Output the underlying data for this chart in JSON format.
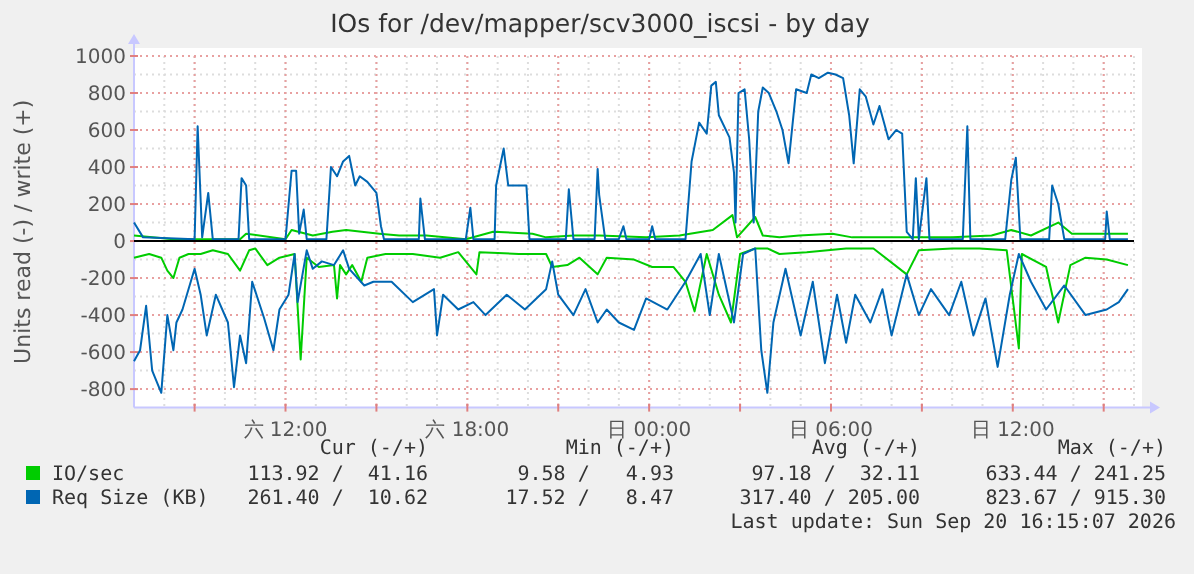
{
  "chart_data": {
    "type": "line",
    "title": "IOs for /dev/mapper/scv3000_iscsi - by day",
    "ylabel": "Units read (-) / write (+)",
    "xlim": [
      "2026-09-19T07:00",
      "2026-09-20T16:00"
    ],
    "ylim": [
      -900,
      1000
    ],
    "xticks": [
      {
        "value": "2026-09-19T09:00",
        "label": null
      },
      {
        "value": "2026-09-19T12:00",
        "label": "六 12:00"
      },
      {
        "value": "2026-09-19T15:00",
        "label": null
      },
      {
        "value": "2026-09-19T18:00",
        "label": "六 18:00"
      },
      {
        "value": "2026-09-19T21:00",
        "label": null
      },
      {
        "value": "2026-09-20T00:00",
        "label": "日 00:00"
      },
      {
        "value": "2026-09-20T03:00",
        "label": null
      },
      {
        "value": "2026-09-20T06:00",
        "label": "日 06:00"
      },
      {
        "value": "2026-09-20T09:00",
        "label": null
      },
      {
        "value": "2026-09-20T12:00",
        "label": "日 12:00"
      },
      {
        "value": "2026-09-20T15:00",
        "label": null
      }
    ],
    "yticks": [
      -800,
      -600,
      -400,
      -200,
      0,
      200,
      400,
      600,
      800,
      1000
    ],
    "grid": true,
    "legend": "bottom",
    "series": [
      {
        "name": "IO/sec",
        "color": "#00cc00",
        "x": [
          "2026-09-19T07:00",
          "2026-09-19T08:18",
          "2026-09-19T10:30",
          "2026-09-19T10:42",
          "2026-09-19T12:00",
          "2026-09-19T12:12",
          "2026-09-19T12:54",
          "2026-09-19T13:33",
          "2026-09-19T14:00",
          "2026-09-19T15:06",
          "2026-09-19T15:45",
          "2026-09-19T16:39",
          "2026-09-19T17:57",
          "2026-09-19T18:51",
          "2026-09-19T20:09",
          "2026-09-19T20:36",
          "2026-09-19T21:30",
          "2026-09-19T22:21",
          "2026-09-19T23:54",
          "2026-09-20T01:00",
          "2026-09-20T02:06",
          "2026-09-20T02:45",
          "2026-09-20T02:54",
          "2026-09-20T03:30",
          "2026-09-20T03:45",
          "2026-09-20T04:18",
          "2026-09-20T04:57",
          "2026-09-20T06:03",
          "2026-09-20T06:42",
          "2026-09-20T08:15",
          "2026-09-20T10:00",
          "2026-09-20T11:18",
          "2026-09-20T11:57",
          "2026-09-20T12:36",
          "2026-09-20T13:30",
          "2026-09-20T13:57",
          "2026-09-20T14:24",
          "2026-09-20T15:18",
          "2026-09-20T15:48"
        ],
        "values": [
          30,
          10,
          10,
          40,
          10,
          60,
          30,
          50,
          60,
          40,
          30,
          30,
          10,
          50,
          40,
          20,
          30,
          30,
          20,
          30,
          60,
          140,
          20,
          130,
          30,
          20,
          30,
          40,
          20,
          20,
          20,
          30,
          60,
          30,
          100,
          40,
          40,
          40,
          40
        ]
      },
      {
        "color": "#00cc00",
        "x": [
          "2026-09-19T07:00",
          "2026-09-19T07:30",
          "2026-09-19T07:54",
          "2026-09-19T08:06",
          "2026-09-19T08:18",
          "2026-09-19T08:30",
          "2026-09-19T08:48",
          "2026-09-19T09:12",
          "2026-09-19T09:36",
          "2026-09-19T10:06",
          "2026-09-19T10:30",
          "2026-09-19T10:48",
          "2026-09-19T11:00",
          "2026-09-19T11:24",
          "2026-09-19T11:48",
          "2026-09-19T12:18",
          "2026-09-19T12:30",
          "2026-09-19T12:42",
          "2026-09-19T13:06",
          "2026-09-19T13:36",
          "2026-09-19T13:42",
          "2026-09-19T13:48",
          "2026-09-19T14:00",
          "2026-09-19T14:12",
          "2026-09-19T14:30",
          "2026-09-19T14:42",
          "2026-09-19T15:18",
          "2026-09-19T16:12",
          "2026-09-19T17:06",
          "2026-09-19T17:42",
          "2026-09-19T18:18",
          "2026-09-19T18:24",
          "2026-09-19T19:42",
          "2026-09-19T20:36",
          "2026-09-19T20:48",
          "2026-09-19T21:18",
          "2026-09-19T21:42",
          "2026-09-19T22:18",
          "2026-09-19T22:36",
          "2026-09-19T23:30",
          "2026-09-20T00:06",
          "2026-09-20T00:48",
          "2026-09-20T01:12",
          "2026-09-20T01:30",
          "2026-09-20T01:54",
          "2026-09-20T02:18",
          "2026-09-20T02:42",
          "2026-09-20T03:00",
          "2026-09-20T03:30",
          "2026-09-20T03:54",
          "2026-09-20T04:18",
          "2026-09-20T05:12",
          "2026-09-20T06:30",
          "2026-09-20T07:24",
          "2026-09-20T08:30",
          "2026-09-20T08:54",
          "2026-09-20T10:00",
          "2026-09-20T10:54",
          "2026-09-20T11:48",
          "2026-09-20T12:12",
          "2026-09-20T12:18",
          "2026-09-20T13:06",
          "2026-09-20T13:30",
          "2026-09-20T13:54",
          "2026-09-20T14:24",
          "2026-09-20T15:06",
          "2026-09-20T15:48"
        ],
        "values": [
          -90,
          -70,
          -90,
          -160,
          -200,
          -90,
          -70,
          -70,
          -50,
          -70,
          -160,
          -50,
          -40,
          -130,
          -90,
          -70,
          -640,
          -90,
          -140,
          -130,
          -310,
          -130,
          -180,
          -130,
          -220,
          -90,
          -70,
          -70,
          -90,
          -60,
          -180,
          -60,
          -70,
          -70,
          -140,
          -130,
          -90,
          -180,
          -90,
          -100,
          -140,
          -140,
          -220,
          -380,
          -70,
          -290,
          -440,
          -70,
          -40,
          -40,
          -70,
          -60,
          -40,
          -40,
          -180,
          -50,
          -40,
          -40,
          -50,
          -580,
          -70,
          -140,
          -440,
          -130,
          -90,
          -100,
          -130
        ]
      },
      {
        "name": "Req Size (KB)",
        "color": "#0066b3",
        "x": [
          "2026-09-19T07:00",
          "2026-09-19T07:18",
          "2026-09-19T09:00",
          "2026-09-19T09:06",
          "2026-09-19T09:15",
          "2026-09-19T09:27",
          "2026-09-19T09:36",
          "2026-09-19T10:27",
          "2026-09-19T10:33",
          "2026-09-19T10:42",
          "2026-09-19T10:48",
          "2026-09-19T12:00",
          "2026-09-19T12:12",
          "2026-09-19T12:21",
          "2026-09-19T12:27",
          "2026-09-19T12:36",
          "2026-09-19T12:42",
          "2026-09-19T13:21",
          "2026-09-19T13:30",
          "2026-09-19T13:42",
          "2026-09-19T13:54",
          "2026-09-19T14:06",
          "2026-09-19T14:18",
          "2026-09-19T14:27",
          "2026-09-19T14:42",
          "2026-09-19T15:00",
          "2026-09-19T15:09",
          "2026-09-19T15:15",
          "2026-09-19T16:24",
          "2026-09-19T16:27",
          "2026-09-19T16:36",
          "2026-09-19T17:57",
          "2026-09-19T18:06",
          "2026-09-19T18:12",
          "2026-09-19T18:54",
          "2026-09-19T18:57",
          "2026-09-19T19:12",
          "2026-09-19T19:21",
          "2026-09-19T19:57",
          "2026-09-19T20:03",
          "2026-09-19T21:15",
          "2026-09-19T21:21",
          "2026-09-19T21:30",
          "2026-09-19T22:12",
          "2026-09-19T22:18",
          "2026-09-19T22:21",
          "2026-09-19T22:33",
          "2026-09-19T23:00",
          "2026-09-19T23:09",
          "2026-09-19T23:15",
          "2026-09-20T00:00",
          "2026-09-20T00:06",
          "2026-09-20T00:12",
          "2026-09-20T01:12",
          "2026-09-20T01:24",
          "2026-09-20T01:39",
          "2026-09-20T01:54",
          "2026-09-20T02:03",
          "2026-09-20T02:12",
          "2026-09-20T02:18",
          "2026-09-20T02:39",
          "2026-09-20T02:48",
          "2026-09-20T02:51",
          "2026-09-20T02:57",
          "2026-09-20T03:09",
          "2026-09-20T03:18",
          "2026-09-20T03:27",
          "2026-09-20T03:36",
          "2026-09-20T03:45",
          "2026-09-20T03:57",
          "2026-09-20T04:12",
          "2026-09-20T04:24",
          "2026-09-20T04:36",
          "2026-09-20T04:51",
          "2026-09-20T05:12",
          "2026-09-20T05:21",
          "2026-09-20T05:36",
          "2026-09-20T05:54",
          "2026-09-20T06:09",
          "2026-09-20T06:24",
          "2026-09-20T06:36",
          "2026-09-20T06:45",
          "2026-09-20T06:57",
          "2026-09-20T07:09",
          "2026-09-20T07:24",
          "2026-09-20T07:36",
          "2026-09-20T07:54",
          "2026-09-20T08:09",
          "2026-09-20T08:21",
          "2026-09-20T08:30",
          "2026-09-20T08:42",
          "2026-09-20T08:48",
          "2026-09-20T08:54",
          "2026-09-20T09:09",
          "2026-09-20T09:15",
          "2026-09-20T10:21",
          "2026-09-20T10:30",
          "2026-09-20T10:36",
          "2026-09-20T11:45",
          "2026-09-20T11:57",
          "2026-09-20T12:06",
          "2026-09-20T12:15",
          "2026-09-20T13:12",
          "2026-09-20T13:18",
          "2026-09-20T13:30",
          "2026-09-20T13:42",
          "2026-09-20T15:03",
          "2026-09-20T15:06",
          "2026-09-20T15:12",
          "2026-09-20T15:48"
        ],
        "values": [
          100,
          20,
          10,
          620,
          20,
          260,
          10,
          10,
          340,
          300,
          10,
          10,
          380,
          380,
          40,
          170,
          10,
          10,
          400,
          350,
          430,
          460,
          300,
          350,
          320,
          260,
          80,
          10,
          10,
          230,
          10,
          10,
          180,
          10,
          10,
          300,
          500,
          300,
          300,
          10,
          10,
          280,
          10,
          10,
          390,
          250,
          10,
          10,
          80,
          10,
          10,
          80,
          10,
          10,
          430,
          640,
          580,
          840,
          860,
          680,
          560,
          370,
          100,
          800,
          820,
          550,
          100,
          700,
          830,
          800,
          700,
          600,
          420,
          820,
          800,
          900,
          880,
          910,
          900,
          880,
          680,
          420,
          820,
          780,
          630,
          730,
          550,
          600,
          580,
          50,
          10,
          340,
          10,
          340,
          10,
          10,
          620,
          10,
          10,
          330,
          450,
          10,
          10,
          300,
          200,
          10,
          10,
          160,
          10,
          10
        ]
      },
      {
        "color": "#0066b3",
        "x": [
          "2026-09-19T07:00",
          "2026-09-19T07:12",
          "2026-09-19T07:24",
          "2026-09-19T07:36",
          "2026-09-19T07:54",
          "2026-09-19T08:06",
          "2026-09-19T08:18",
          "2026-09-19T08:24",
          "2026-09-19T08:36",
          "2026-09-19T09:00",
          "2026-09-19T09:12",
          "2026-09-19T09:24",
          "2026-09-19T09:42",
          "2026-09-19T10:06",
          "2026-09-19T10:18",
          "2026-09-19T10:30",
          "2026-09-19T10:42",
          "2026-09-19T10:54",
          "2026-09-19T11:18",
          "2026-09-19T11:36",
          "2026-09-19T11:48",
          "2026-09-19T12:06",
          "2026-09-19T12:18",
          "2026-09-19T12:24",
          "2026-09-19T12:42",
          "2026-09-19T12:54",
          "2026-09-19T13:12",
          "2026-09-19T13:36",
          "2026-09-19T13:54",
          "2026-09-19T14:06",
          "2026-09-19T14:36",
          "2026-09-19T14:54",
          "2026-09-19T15:30",
          "2026-09-19T16:12",
          "2026-09-19T16:54",
          "2026-09-19T17:00",
          "2026-09-19T17:12",
          "2026-09-19T17:42",
          "2026-09-19T18:12",
          "2026-09-19T18:36",
          "2026-09-19T19:18",
          "2026-09-19T19:54",
          "2026-09-19T20:36",
          "2026-09-19T20:48",
          "2026-09-19T21:00",
          "2026-09-19T21:30",
          "2026-09-19T21:54",
          "2026-09-19T22:18",
          "2026-09-19T22:36",
          "2026-09-19T23:00",
          "2026-09-19T23:30",
          "2026-09-19T23:54",
          "2026-09-20T00:36",
          "2026-09-20T01:12",
          "2026-09-20T01:42",
          "2026-09-20T02:00",
          "2026-09-20T02:18",
          "2026-09-20T02:48",
          "2026-09-20T03:06",
          "2026-09-20T03:30",
          "2026-09-20T03:42",
          "2026-09-20T03:54",
          "2026-09-20T04:06",
          "2026-09-20T04:30",
          "2026-09-20T05:00",
          "2026-09-20T05:24",
          "2026-09-20T05:48",
          "2026-09-20T06:12",
          "2026-09-20T06:30",
          "2026-09-20T06:48",
          "2026-09-20T07:18",
          "2026-09-20T07:42",
          "2026-09-20T08:00",
          "2026-09-20T08:30",
          "2026-09-20T08:54",
          "2026-09-20T09:18",
          "2026-09-20T09:54",
          "2026-09-20T10:18",
          "2026-09-20T10:42",
          "2026-09-20T11:06",
          "2026-09-20T11:30",
          "2026-09-20T11:54",
          "2026-09-20T12:12",
          "2026-09-20T12:36",
          "2026-09-20T13:06",
          "2026-09-20T13:42",
          "2026-09-20T14:24",
          "2026-09-20T15:06",
          "2026-09-20T15:30",
          "2026-09-20T15:48"
        ],
        "values": [
          -650,
          -590,
          -350,
          -700,
          -820,
          -400,
          -590,
          -440,
          -370,
          -150,
          -290,
          -510,
          -290,
          -440,
          -790,
          -510,
          -660,
          -220,
          -420,
          -590,
          -370,
          -290,
          -70,
          -330,
          -50,
          -150,
          -110,
          -130,
          -50,
          -150,
          -240,
          -220,
          -220,
          -330,
          -260,
          -510,
          -290,
          -370,
          -330,
          -400,
          -290,
          -370,
          -260,
          -110,
          -290,
          -400,
          -260,
          -440,
          -370,
          -440,
          -480,
          -310,
          -370,
          -220,
          -70,
          -400,
          -70,
          -440,
          -70,
          -40,
          -590,
          -820,
          -440,
          -150,
          -510,
          -220,
          -660,
          -290,
          -550,
          -290,
          -440,
          -260,
          -510,
          -180,
          -400,
          -260,
          -400,
          -220,
          -510,
          -310,
          -680,
          -290,
          -70,
          -220,
          -370,
          -240,
          -400,
          -370,
          -330,
          -260
        ]
      }
    ],
    "annotations": [
      "Cur (-/+)",
      "Min (-/+)",
      "Avg (-/+)",
      "Max (-/+)",
      "113.92 /  41.16",
      "9.58 /   4.93",
      "97.18 /  32.11",
      "633.44 / 241.25",
      "261.40 /  10.62",
      "17.52 /   8.47",
      "317.40 / 205.00",
      "823.67 / 915.30",
      "Last update: Sun Sep 20 16:15:07 2026"
    ]
  }
}
